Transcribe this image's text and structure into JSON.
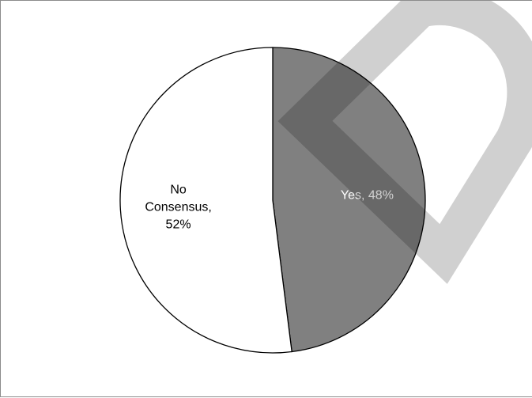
{
  "chart_data": {
    "type": "pie",
    "title": "",
    "slices": [
      {
        "label": "Yes",
        "value": 48,
        "display": "Yes, 48%",
        "color": "#808080",
        "label_color": "#ffffff"
      },
      {
        "label": "No Consensus",
        "value": 52,
        "display_lines": [
          "No",
          "Consensus,",
          "52%"
        ],
        "color": "#ffffff",
        "label_color": "#000000"
      }
    ],
    "start_angle_deg": 0,
    "direction": "clockwise",
    "legend": "none"
  },
  "watermark": {
    "shape": "chevron-loop",
    "color": "#c8c8c8",
    "opacity": 0.85
  }
}
